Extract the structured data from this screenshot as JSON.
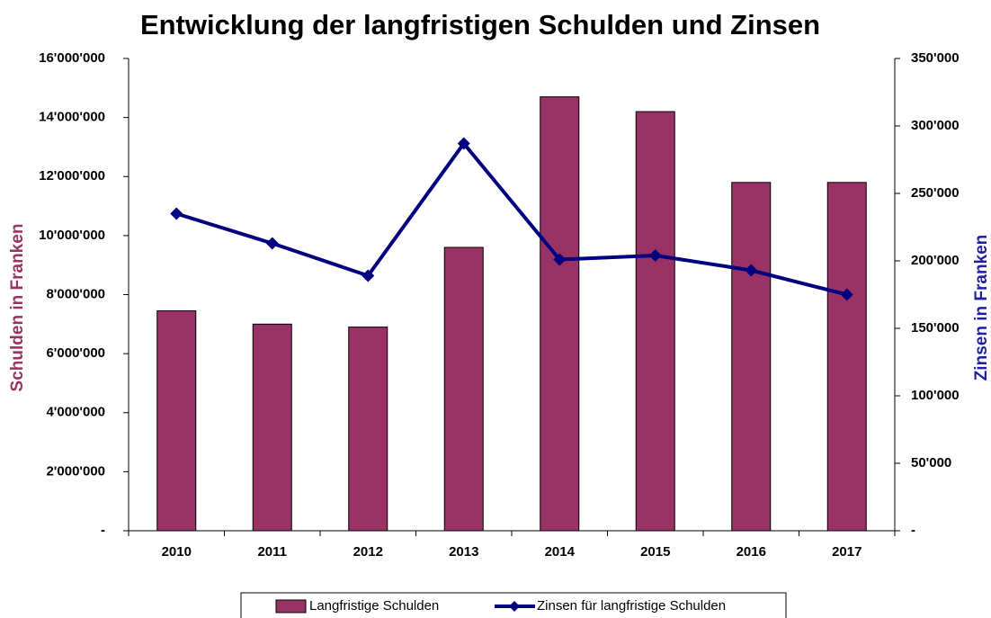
{
  "chart_data": {
    "type": "bar+line",
    "title": "Entwicklung der langfristigen Schulden und Zinsen",
    "categories": [
      "2010",
      "2011",
      "2012",
      "2013",
      "2014",
      "2015",
      "2016",
      "2017"
    ],
    "series": [
      {
        "name": "Langfristige Schulden",
        "type": "bar",
        "color": "#993366",
        "axis": "y",
        "values": [
          7450000,
          7000000,
          6900000,
          9600000,
          14700000,
          14200000,
          11800000,
          11800000
        ]
      },
      {
        "name": "Zinsen für langfristige Schulden",
        "type": "line",
        "color": "#000080",
        "axis": "y2",
        "values": [
          235000,
          213000,
          189000,
          287000,
          201000,
          204000,
          193000,
          175000
        ]
      }
    ],
    "ylabel": "Schulden in Franken",
    "y2label": "Zinsen in Franken",
    "ylim": [
      0,
      16000000
    ],
    "yticks": [
      {
        "value": 0,
        "label": "-"
      },
      {
        "value": 2000000,
        "label": "2'000'000"
      },
      {
        "value": 4000000,
        "label": "4'000'000"
      },
      {
        "value": 6000000,
        "label": "6'000'000"
      },
      {
        "value": 8000000,
        "label": "8'000'000"
      },
      {
        "value": 10000000,
        "label": "10'000'000"
      },
      {
        "value": 12000000,
        "label": "12'000'000"
      },
      {
        "value": 14000000,
        "label": "14'000'000"
      },
      {
        "value": 16000000,
        "label": "16'000'000"
      }
    ],
    "y2lim": [
      0,
      350000
    ],
    "y2ticks": [
      {
        "value": 0,
        "label": "-"
      },
      {
        "value": 50000,
        "label": "50'000"
      },
      {
        "value": 100000,
        "label": "100'000"
      },
      {
        "value": 150000,
        "label": "150'000"
      },
      {
        "value": 200000,
        "label": "200'000"
      },
      {
        "value": 250000,
        "label": "250'000"
      },
      {
        "value": 300000,
        "label": "300'000"
      },
      {
        "value": 350000,
        "label": "350'000"
      }
    ],
    "grid": false,
    "legend": "bottom"
  }
}
